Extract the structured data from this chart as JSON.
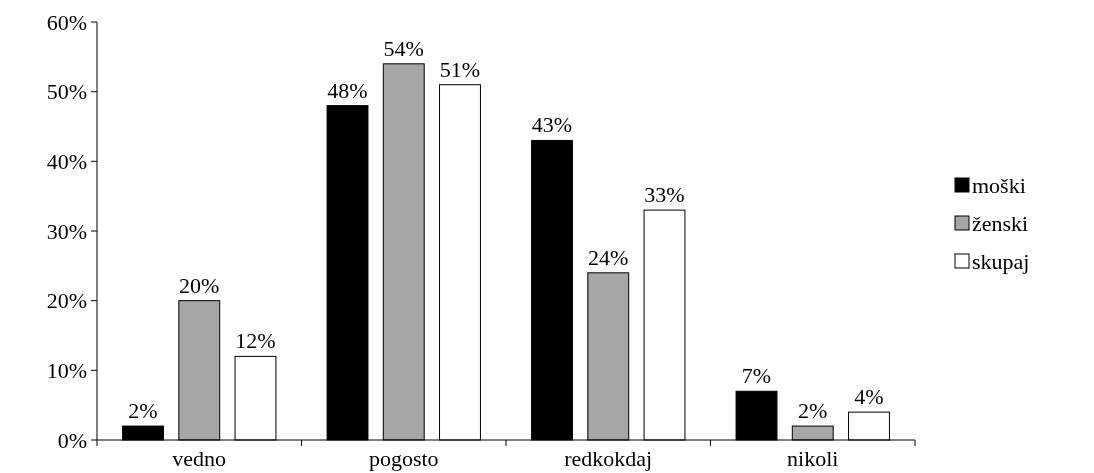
{
  "chart_data": {
    "type": "bar",
    "categories": [
      "vedno",
      "pogosto",
      "redkokdaj",
      "nikoli"
    ],
    "series": [
      {
        "name": "moški",
        "color": "#000000",
        "values": [
          2,
          48,
          43,
          7
        ],
        "value_labels": [
          "2%",
          "48%",
          "43%",
          "7%"
        ]
      },
      {
        "name": "ženski",
        "color": "#a6a6a6",
        "values": [
          20,
          54,
          24,
          2
        ],
        "value_labels": [
          "20%",
          "54%",
          "24%",
          "2%"
        ]
      },
      {
        "name": "skupaj",
        "color": "#ffffff",
        "values": [
          12,
          51,
          33,
          4
        ],
        "value_labels": [
          "12%",
          "51%",
          "33%",
          "4%"
        ]
      }
    ],
    "ylim": [
      0,
      60
    ],
    "yticks": [
      {
        "value": 0,
        "label": "0%"
      },
      {
        "value": 10,
        "label": "10%"
      },
      {
        "value": 20,
        "label": "20%"
      },
      {
        "value": 30,
        "label": "30%"
      },
      {
        "value": 40,
        "label": "40%"
      },
      {
        "value": 50,
        "label": "50%"
      },
      {
        "value": 60,
        "label": "60%"
      }
    ],
    "legend": "right",
    "grid": false
  }
}
